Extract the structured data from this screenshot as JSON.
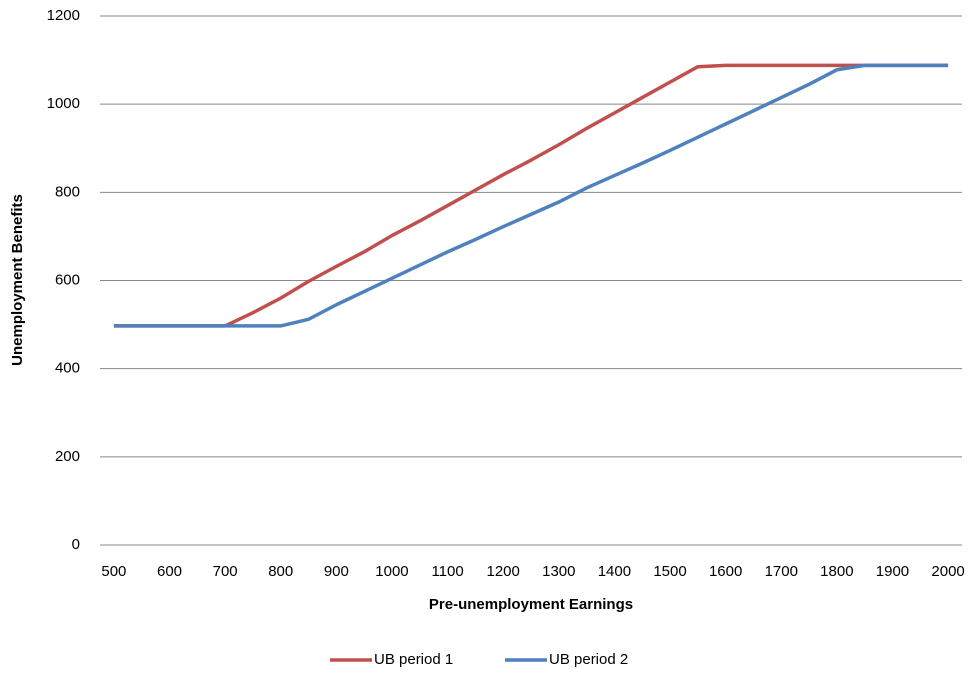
{
  "chart_data": {
    "type": "line",
    "x_label": "Pre-unemployment Earnings",
    "y_label": "Unemployment Benefits",
    "categories": [
      "500",
      null,
      "600",
      null,
      "700",
      null,
      "800",
      null,
      "900",
      null,
      "1000",
      null,
      "1100",
      null,
      "1200",
      null,
      "1300",
      null,
      "1400",
      null,
      "1500",
      null,
      "1600",
      null,
      "1700",
      null,
      "1800",
      null,
      "1900",
      null,
      "2000"
    ],
    "series": [
      {
        "name": "UB period 1",
        "color": "#c0504d",
        "values": [
          497,
          497,
          497,
          497,
          497,
          527,
          560,
          598,
          632,
          665,
          702,
          735,
          770,
          805,
          840,
          873,
          908,
          945,
          980,
          1015,
          1050,
          1085,
          1088,
          1088,
          1088,
          1088,
          1088,
          1088,
          1088,
          1088,
          1088
        ]
      },
      {
        "name": "UB period 2",
        "color": "#4f81bd",
        "values": [
          497,
          497,
          497,
          497,
          497,
          497,
          497,
          512,
          545,
          575,
          605,
          635,
          665,
          693,
          722,
          750,
          778,
          810,
          838,
          866,
          895,
          925,
          955,
          985,
          1015,
          1045,
          1078,
          1088,
          1088,
          1088,
          1088
        ]
      }
    ],
    "ylim": [
      0,
      1200
    ],
    "yticks": [
      0,
      200,
      400,
      600,
      800,
      1000,
      1200
    ],
    "grid": true,
    "legend": "bottom"
  }
}
